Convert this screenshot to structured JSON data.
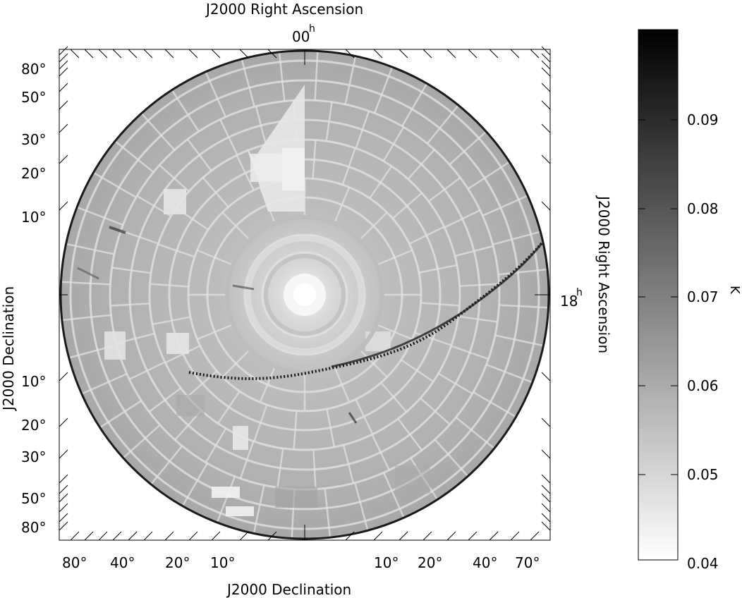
{
  "map": {
    "title_top": "J2000 Right Ascension",
    "title_bottom": "J2000 Declination",
    "title_left": "J2000 Declination",
    "title_right": "J2000 Right Ascension",
    "ra_top": {
      "value": "00",
      "unit": "h"
    },
    "ra_right": {
      "value": "18",
      "unit": "h"
    },
    "left_dec_ticks": [
      "80°",
      "50°",
      "30°",
      "20°",
      "10°",
      "10°",
      "20°",
      "30°",
      "50°",
      "80°"
    ],
    "bottom_dec_ticks": [
      "80°",
      "40°",
      "20°",
      "10°",
      "10°",
      "20°",
      "40°",
      "70°"
    ],
    "colors": {
      "galactic_plane": "#000000",
      "background": "#ffffff",
      "disk_mid": "#b8b8b8"
    }
  },
  "colorbar": {
    "unit": "K",
    "ticks": [
      "0.09",
      "0.08",
      "0.07",
      "0.06",
      "0.05",
      "0.04"
    ],
    "range": [
      0.04,
      0.1
    ],
    "colors": {
      "low": "#ffffff",
      "high": "#000000"
    }
  }
}
